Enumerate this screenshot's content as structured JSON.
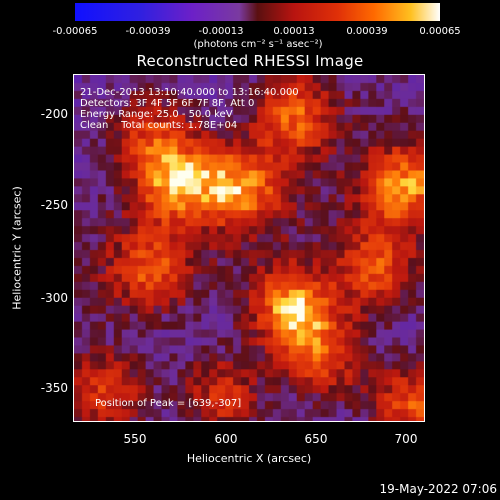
{
  "colorbar": {
    "ticks": [
      "-0.00065",
      "-0.00039",
      "-0.00013",
      "0.00013",
      "0.00039",
      "0.00065"
    ],
    "unit_label": "(photons cm⁻² s⁻¹ asec⁻²)"
  },
  "plot": {
    "title": "Reconstructed RHESSI Image",
    "info": {
      "time": "21-Dec-2013 13:10:40.000 to 13:16:40.000",
      "detectors": "Detectors: 3F 4F 5F 6F 7F 8F, Att 0",
      "energy": "Energy Range: 25.0 - 50.0 keV",
      "method": "Clean    Total counts: 1.78E+04",
      "peak": "Position of Peak = [639,-307]"
    },
    "x_ticks": [
      "550",
      "600",
      "650",
      "700"
    ],
    "y_ticks": [
      "-200",
      "-250",
      "-300",
      "-350"
    ],
    "x_label": "Heliocentric X (arcsec)",
    "y_label": "Heliocentric Y (arcsec)"
  },
  "footer": {
    "date": "19-May-2022 07:06"
  },
  "chart_data": {
    "type": "heatmap",
    "title": "Reconstructed RHESSI Image",
    "xlabel": "Heliocentric X (arcsec)",
    "ylabel": "Heliocentric Y (arcsec)",
    "xlim": [
      518,
      711
    ],
    "ylim": [
      -369,
      -178
    ],
    "colorbar_range": [
      -0.00065,
      0.00065
    ],
    "colormap": "blue-purple-red-orange-white",
    "peak": {
      "x": 639,
      "y": -307
    },
    "bright_sources": [
      {
        "x": 639,
        "y": -307,
        "level": 1.0
      },
      {
        "x": 575,
        "y": -237,
        "level": 0.85
      },
      {
        "x": 610,
        "y": -240,
        "level": 0.8
      },
      {
        "x": 640,
        "y": -200,
        "level": 0.75
      },
      {
        "x": 700,
        "y": -240,
        "level": 0.8
      },
      {
        "x": 685,
        "y": -285,
        "level": 0.7
      },
      {
        "x": 705,
        "y": -360,
        "level": 0.75
      },
      {
        "x": 655,
        "y": -335,
        "level": 0.65
      },
      {
        "x": 600,
        "y": -355,
        "level": 0.6
      },
      {
        "x": 535,
        "y": -355,
        "level": 0.65
      },
      {
        "x": 560,
        "y": -285,
        "level": 0.6
      },
      {
        "x": 560,
        "y": -210,
        "level": 0.55
      }
    ]
  }
}
